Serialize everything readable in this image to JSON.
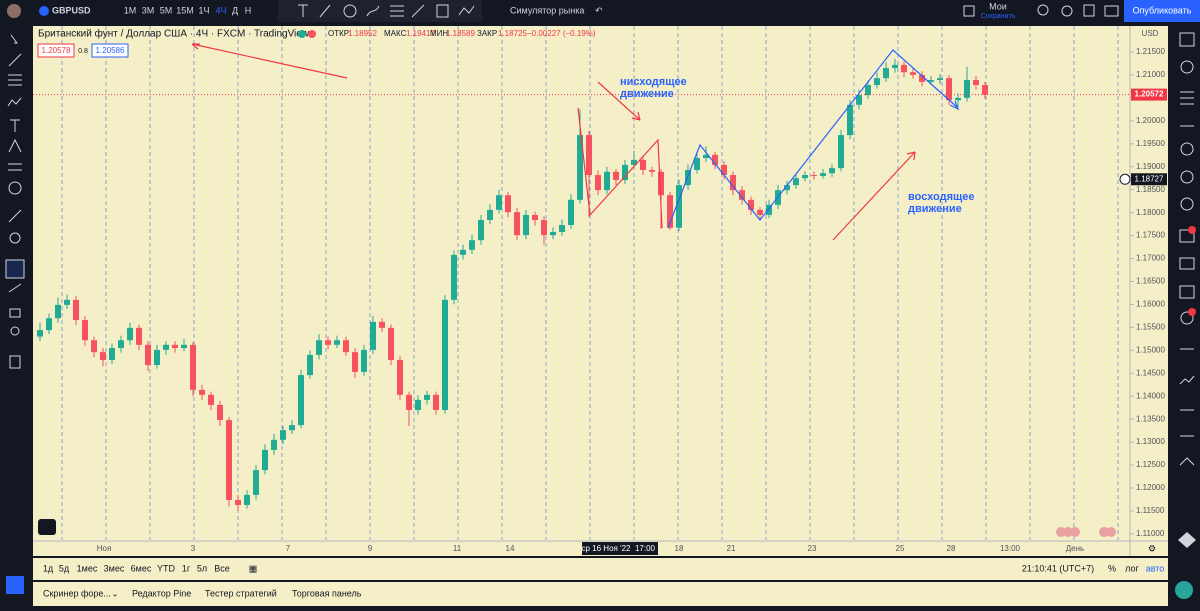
{
  "toolbar": {
    "symbol": "GBPUSD",
    "intervals": [
      "1M",
      "3M",
      "5M",
      "15M",
      "1Ч",
      "4Ч",
      "Д",
      "Н"
    ],
    "replay": "Симулятор рынка",
    "layouts": "Мои",
    "save": "Сохранить",
    "publish": "Опубликовать"
  },
  "legend": {
    "title": "Британский фунт / Доллар США · 4Ч · FXCM · TradingView",
    "open_label": "ОТКР",
    "open": 1.18952,
    "high_label": "МАКС",
    "high": 1.19417,
    "low_label": "МИН",
    "low": 1.18589,
    "close_label": "ЗАКР",
    "close": 1.18725,
    "change": "−0.00227 (−0.19%)",
    "bid": 1.20578,
    "spread": 0.8,
    "ask": 1.20586
  },
  "chart_data": {
    "type": "candlestick",
    "up_color": "#22ab94",
    "down_color": "#f7525f",
    "candles": [
      [
        1.153,
        1.156,
        1.152,
        1.1544
      ],
      [
        1.1544,
        1.158,
        1.1535,
        1.157
      ],
      [
        1.157,
        1.1615,
        1.156,
        1.1599
      ],
      [
        1.1599,
        1.1622,
        1.159,
        1.161
      ],
      [
        1.161,
        1.1618,
        1.1555,
        1.1566
      ],
      [
        1.1566,
        1.1575,
        1.151,
        1.1522
      ],
      [
        1.1522,
        1.153,
        1.1485,
        1.1496
      ],
      [
        1.1496,
        1.1505,
        1.1465,
        1.1479
      ],
      [
        1.1479,
        1.1515,
        1.147,
        1.1505
      ],
      [
        1.1505,
        1.1532,
        1.1495,
        1.1522
      ],
      [
        1.1522,
        1.156,
        1.1512,
        1.1549
      ],
      [
        1.1549,
        1.1556,
        1.15,
        1.1512
      ],
      [
        1.1512,
        1.152,
        1.1455,
        1.1468
      ],
      [
        1.1468,
        1.1512,
        1.146,
        1.1501
      ],
      [
        1.1501,
        1.152,
        1.149,
        1.1512
      ],
      [
        1.1512,
        1.152,
        1.1495,
        1.1505
      ],
      [
        1.1505,
        1.1525,
        1.1498,
        1.1512
      ],
      [
        1.1512,
        1.1518,
        1.14,
        1.1414
      ],
      [
        1.1414,
        1.1425,
        1.1392,
        1.1403
      ],
      [
        1.1403,
        1.141,
        1.137,
        1.1381
      ],
      [
        1.1381,
        1.139,
        1.1335,
        1.1348
      ],
      [
        1.1348,
        1.1355,
        1.116,
        1.1174
      ],
      [
        1.1174,
        1.1185,
        1.115,
        1.1163
      ],
      [
        1.1163,
        1.1195,
        1.1155,
        1.1185
      ],
      [
        1.1185,
        1.125,
        1.1175,
        1.1239
      ],
      [
        1.1239,
        1.1295,
        1.123,
        1.1283
      ],
      [
        1.1283,
        1.1318,
        1.1272,
        1.1305
      ],
      [
        1.1305,
        1.1335,
        1.1295,
        1.1326
      ],
      [
        1.1326,
        1.1348,
        1.1318,
        1.1337
      ],
      [
        1.1337,
        1.1458,
        1.133,
        1.1446
      ],
      [
        1.1446,
        1.15,
        1.1438,
        1.149
      ],
      [
        1.149,
        1.1535,
        1.148,
        1.1522
      ],
      [
        1.1522,
        1.153,
        1.1502,
        1.1512
      ],
      [
        1.1512,
        1.1532,
        1.1505,
        1.1522
      ],
      [
        1.1522,
        1.153,
        1.1488,
        1.1496
      ],
      [
        1.1496,
        1.1505,
        1.144,
        1.1453
      ],
      [
        1.1453,
        1.1512,
        1.1445,
        1.1501
      ],
      [
        1.1501,
        1.1575,
        1.1492,
        1.1562
      ],
      [
        1.1562,
        1.157,
        1.154,
        1.1549
      ],
      [
        1.1549,
        1.1556,
        1.1468,
        1.1479
      ],
      [
        1.1479,
        1.1488,
        1.1392,
        1.1403
      ],
      [
        1.1403,
        1.141,
        1.1335,
        1.137
      ],
      [
        1.137,
        1.1402,
        1.136,
        1.1392
      ],
      [
        1.1392,
        1.1412,
        1.1382,
        1.1403
      ],
      [
        1.1403,
        1.141,
        1.136,
        1.137
      ],
      [
        1.137,
        1.162,
        1.1362,
        1.161
      ],
      [
        1.161,
        1.1718,
        1.16,
        1.1708
      ],
      [
        1.1708,
        1.173,
        1.1698,
        1.1719
      ],
      [
        1.1719,
        1.1752,
        1.171,
        1.174
      ],
      [
        1.174,
        1.1795,
        1.173,
        1.1784
      ],
      [
        1.1784,
        1.1818,
        1.1775,
        1.1806
      ],
      [
        1.1806,
        1.185,
        1.1798,
        1.1838
      ],
      [
        1.1838,
        1.1845,
        1.179,
        1.1801
      ],
      [
        1.1801,
        1.181,
        1.174,
        1.1751
      ],
      [
        1.1751,
        1.1806,
        1.1742,
        1.1795
      ],
      [
        1.1795,
        1.1802,
        1.1772,
        1.1784
      ],
      [
        1.1784,
        1.1792,
        1.173,
        1.1751
      ],
      [
        1.1751,
        1.1768,
        1.1742,
        1.1758
      ],
      [
        1.1758,
        1.1785,
        1.175,
        1.1773
      ],
      [
        1.1773,
        1.184,
        1.1765,
        1.1828
      ],
      [
        1.1828,
        1.2025,
        1.182,
        1.1969
      ],
      [
        1.1969,
        1.1978,
        1.179,
        1.1882
      ],
      [
        1.1882,
        1.1892,
        1.1838,
        1.1849
      ],
      [
        1.1849,
        1.19,
        1.184,
        1.1889
      ],
      [
        1.1889,
        1.1895,
        1.186,
        1.1871
      ],
      [
        1.1871,
        1.1915,
        1.1862,
        1.1904
      ],
      [
        1.1904,
        1.1935,
        1.1895,
        1.1915
      ],
      [
        1.1915,
        1.1922,
        1.1882,
        1.1893
      ],
      [
        1.1893,
        1.19,
        1.1878,
        1.1889
      ],
      [
        1.1889,
        1.1895,
        1.1765,
        1.1838
      ],
      [
        1.1838,
        1.1845,
        1.1762,
        1.1767
      ],
      [
        1.1767,
        1.1872,
        1.176,
        1.186
      ],
      [
        1.186,
        1.1905,
        1.185,
        1.1893
      ],
      [
        1.1893,
        1.193,
        1.1885,
        1.1919
      ],
      [
        1.1919,
        1.1945,
        1.191,
        1.1926
      ],
      [
        1.1926,
        1.1932,
        1.1895,
        1.1904
      ],
      [
        1.1904,
        1.1912,
        1.1872,
        1.1882
      ],
      [
        1.1882,
        1.189,
        1.1838,
        1.1849
      ],
      [
        1.1849,
        1.1858,
        1.1818,
        1.1828
      ],
      [
        1.1828,
        1.1835,
        1.1795,
        1.1806
      ],
      [
        1.1806,
        1.1812,
        1.1785,
        1.1795
      ],
      [
        1.1795,
        1.1828,
        1.1788,
        1.1817
      ],
      [
        1.1817,
        1.186,
        1.1808,
        1.1849
      ],
      [
        1.1849,
        1.187,
        1.184,
        1.186
      ],
      [
        1.186,
        1.1885,
        1.1852,
        1.1875
      ],
      [
        1.1875,
        1.189,
        1.1868,
        1.1882
      ],
      [
        1.1882,
        1.189,
        1.1872,
        1.188
      ],
      [
        1.188,
        1.1895,
        1.1874,
        1.1886
      ],
      [
        1.1886,
        1.1905,
        1.1878,
        1.1897
      ],
      [
        1.1897,
        1.198,
        1.189,
        1.1969
      ],
      [
        1.1969,
        1.2045,
        1.196,
        1.2035
      ],
      [
        1.2035,
        1.2068,
        1.2025,
        1.2056
      ],
      [
        1.2056,
        1.2088,
        1.2048,
        1.2078
      ],
      [
        1.2078,
        1.2105,
        1.207,
        1.2093
      ],
      [
        1.2093,
        1.2128,
        1.2085,
        1.2115
      ],
      [
        1.2115,
        1.2135,
        1.2105,
        1.2122
      ],
      [
        1.2122,
        1.213,
        1.2095,
        1.2106
      ],
      [
        1.2106,
        1.2115,
        1.2092,
        1.21
      ],
      [
        1.21,
        1.2108,
        1.2075,
        1.2085
      ],
      [
        1.2085,
        1.2098,
        1.2078,
        1.2089
      ],
      [
        1.2089,
        1.2102,
        1.208,
        1.2093
      ],
      [
        1.2093,
        1.21,
        1.2035,
        1.2045
      ],
      [
        1.2045,
        1.206,
        1.203,
        1.205
      ],
      [
        1.205,
        1.2118,
        1.2042,
        1.2089
      ],
      [
        1.2089,
        1.2098,
        1.2068,
        1.2078
      ],
      [
        1.2078,
        1.2085,
        1.2048,
        1.2057
      ]
    ],
    "ylim": [
      1.10867,
      1.22067
    ],
    "yticks": [
      {
        "value": 1.11,
        "label": "1.11000"
      },
      {
        "value": 1.115,
        "label": "1.11500"
      },
      {
        "value": 1.12,
        "label": "1.12000"
      },
      {
        "value": 1.125,
        "label": "1.12500"
      },
      {
        "value": 1.13,
        "label": "1.13000"
      },
      {
        "value": 1.135,
        "label": "1.13500"
      },
      {
        "value": 1.14,
        "label": "1.14000"
      },
      {
        "value": 1.145,
        "label": "1.14500"
      },
      {
        "value": 1.15,
        "label": "1.15000"
      },
      {
        "value": 1.155,
        "label": "1.15500"
      },
      {
        "value": 1.16,
        "label": "1.16000"
      },
      {
        "value": 1.165,
        "label": "1.16500"
      },
      {
        "value": 1.17,
        "label": "1.17000"
      },
      {
        "value": 1.175,
        "label": "1.17500"
      },
      {
        "value": 1.18,
        "label": "1.18000"
      },
      {
        "value": 1.185,
        "label": "1.18500"
      },
      {
        "value": 1.19,
        "label": "1.19000"
      },
      {
        "value": 1.195,
        "label": "1.19500"
      },
      {
        "value": 1.2,
        "label": "1.20000"
      },
      {
        "value": 1.205,
        "label": "1.20500"
      },
      {
        "value": 1.21,
        "label": "1.21000"
      },
      {
        "value": 1.215,
        "label": "1.21500"
      }
    ],
    "currency": "USD",
    "last_price": 1.20572,
    "crosshair_price": 1.18727,
    "crosshair_date": "ср 16 Ноя '22",
    "crosshair_time": "17:00",
    "x_labels": [
      "Ноя",
      "3",
      "7",
      "9",
      "11",
      "14",
      "18",
      "21",
      "23",
      "25",
      "28",
      "13:00",
      "День"
    ],
    "annotations": [
      "нисходящее\nдвижение",
      "восходящее\nдвижение"
    ]
  },
  "bottom_bar": {
    "ranges": [
      "1д",
      "5д",
      "1мес",
      "3мес",
      "6мес",
      "YTD",
      "1г",
      "5л",
      "Все"
    ],
    "clock": "21:10:41 (UTC+7)",
    "percent": "%",
    "log": "лог",
    "auto": "авто"
  },
  "panels": [
    "Скринер форе...",
    "Редактор Pine",
    "Тестер стратегий",
    "Торговая панель"
  ]
}
